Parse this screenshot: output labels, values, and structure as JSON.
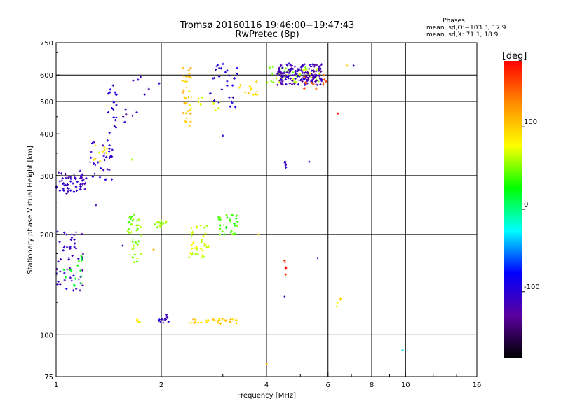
{
  "chart_data": {
    "type": "scatter",
    "title": "Tromsø 20160116 19:46:00−19:47:43",
    "subtitle": "RwPretec (8p)",
    "xlabel": "Frequency [MHz]",
    "ylabel": "Stationary phase Virtual Height [km]",
    "x_scale": "log",
    "y_scale": "log",
    "xlim": [
      1,
      16
    ],
    "ylim": [
      75,
      750
    ],
    "x_ticks": [
      1,
      2,
      4,
      6,
      8,
      10,
      16
    ],
    "y_ticks": [
      75,
      100,
      200,
      300,
      400,
      500,
      600,
      750
    ],
    "x_gridlines": [
      2,
      4,
      6,
      8,
      10
    ],
    "y_gridlines": [
      100,
      200,
      300,
      500,
      600
    ],
    "grid": true,
    "phases_legend": {
      "title": "Phases",
      "line1": "mean, sd,O:−103.3,  17.9",
      "line2": "mean, sd,X:   71.1,  18.9"
    },
    "colorbar": {
      "label": "[deg]",
      "ticks": [
        100,
        0,
        -100
      ],
      "range": [
        -180,
        180
      ],
      "colors": [
        "#000000",
        "#5a00a0",
        "#0000ff",
        "#00ffff",
        "#00ff00",
        "#ffff00",
        "#ff8c00",
        "#ff0000"
      ]
    },
    "point_clusters": [
      {
        "phase_deg": -110,
        "count": 55,
        "x": [
          1.0,
          1.22
        ],
        "y": [
          265,
          310
        ]
      },
      {
        "phase_deg": -105,
        "count": 25,
        "x": [
          1.2,
          1.45
        ],
        "y": [
          290,
          380
        ]
      },
      {
        "phase_deg": -100,
        "count": 25,
        "x": [
          1.4,
          1.49
        ],
        "y": [
          330,
          590
        ]
      },
      {
        "phase_deg": 80,
        "count": 10,
        "x": [
          1.28,
          1.4
        ],
        "y": [
          330,
          380
        ]
      },
      {
        "phase_deg": -110,
        "count": 12,
        "x": [
          1.55,
          1.98
        ],
        "y": [
          430,
          610
        ]
      },
      {
        "phase_deg": 105,
        "count": 35,
        "x": [
          2.3,
          2.44
        ],
        "y": [
          420,
          640
        ]
      },
      {
        "phase_deg": 80,
        "count": 12,
        "x": [
          2.4,
          2.95
        ],
        "y": [
          470,
          520
        ]
      },
      {
        "phase_deg": -100,
        "count": 30,
        "x": [
          2.75,
          3.3
        ],
        "y": [
          480,
          650
        ]
      },
      {
        "phase_deg": 90,
        "count": 12,
        "x": [
          3.3,
          3.8
        ],
        "y": [
          520,
          580
        ]
      },
      {
        "phase_deg": 60,
        "count": 45,
        "x": [
          4.0,
          5.8
        ],
        "y": [
          570,
          640
        ]
      },
      {
        "phase_deg": -115,
        "count": 160,
        "x": [
          4.3,
          5.8
        ],
        "y": [
          560,
          650
        ]
      },
      {
        "phase_deg": 150,
        "count": 12,
        "x": [
          5.0,
          6.0
        ],
        "y": [
          545,
          600
        ]
      },
      {
        "phase_deg": 50,
        "count": 40,
        "x": [
          1.6,
          1.75
        ],
        "y": [
          165,
          230
        ]
      },
      {
        "phase_deg": 55,
        "count": 15,
        "x": [
          1.9,
          2.1
        ],
        "y": [
          210,
          220
        ]
      },
      {
        "phase_deg": 70,
        "count": 40,
        "x": [
          2.4,
          2.75
        ],
        "y": [
          170,
          215
        ]
      },
      {
        "phase_deg": 40,
        "count": 30,
        "x": [
          2.9,
          3.3
        ],
        "y": [
          200,
          230
        ]
      },
      {
        "phase_deg": -110,
        "count": 55,
        "x": [
          1.0,
          1.2
        ],
        "y": [
          135,
          205
        ]
      },
      {
        "phase_deg": 20,
        "count": 15,
        "x": [
          1.05,
          1.2
        ],
        "y": [
          140,
          175
        ]
      },
      {
        "phase_deg": -105,
        "count": 12,
        "x": [
          1.95,
          2.1
        ],
        "y": [
          108,
          115
        ]
      },
      {
        "phase_deg": 100,
        "count": 30,
        "x": [
          2.4,
          3.4
        ],
        "y": [
          108,
          112
        ]
      },
      {
        "phase_deg": 80,
        "count": 5,
        "x": [
          1.7,
          1.75
        ],
        "y": [
          109,
          112
        ]
      },
      {
        "phase_deg": 170,
        "count": 6,
        "x": [
          4.5,
          4.55
        ],
        "y": [
          150,
          170
        ]
      },
      {
        "phase_deg": -110,
        "count": 6,
        "x": [
          4.5,
          4.55
        ],
        "y": [
          300,
          330
        ]
      },
      {
        "phase_deg": 90,
        "count": 4,
        "x": [
          6.3,
          6.6
        ],
        "y": [
          120,
          140
        ]
      }
    ],
    "isolated_points": [
      {
        "x": 6.4,
        "y": 460,
        "phase_deg": 170
      },
      {
        "x": 6.8,
        "y": 640,
        "phase_deg": 100
      },
      {
        "x": 7.1,
        "y": 640,
        "phase_deg": -100
      },
      {
        "x": 9.8,
        "y": 90,
        "phase_deg": -30
      },
      {
        "x": 4.0,
        "y": 82,
        "phase_deg": 110
      },
      {
        "x": 5.3,
        "y": 330,
        "phase_deg": -110
      },
      {
        "x": 5.6,
        "y": 170,
        "phase_deg": -110
      },
      {
        "x": 4.5,
        "y": 130,
        "phase_deg": -110
      },
      {
        "x": 3.0,
        "y": 395,
        "phase_deg": -110
      },
      {
        "x": 1.9,
        "y": 180,
        "phase_deg": 110
      },
      {
        "x": 3.8,
        "y": 200,
        "phase_deg": 110
      },
      {
        "x": 1.65,
        "y": 335,
        "phase_deg": 60
      },
      {
        "x": 1.3,
        "y": 245,
        "phase_deg": -120
      },
      {
        "x": 1.55,
        "y": 185,
        "phase_deg": -120
      }
    ]
  }
}
